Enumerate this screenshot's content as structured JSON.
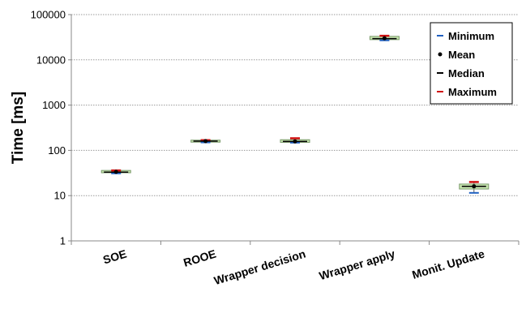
{
  "chart_data": {
    "type": "box",
    "scale": "log",
    "ylabel": "Time [ms]",
    "ylim": [
      1,
      100000
    ],
    "yticks": [
      "1",
      "10",
      "100",
      "1000",
      "10000",
      "100000"
    ],
    "grid": true,
    "legend_position": "top-right",
    "legend": [
      {
        "label": "Minimum",
        "marker": "dash",
        "color": "#2060c0"
      },
      {
        "label": "Mean",
        "marker": "dot",
        "color": "#000000"
      },
      {
        "label": "Median",
        "marker": "dash",
        "color": "#000000"
      },
      {
        "label": "Maximum",
        "marker": "dash",
        "color": "#d01010"
      }
    ],
    "box_color": "#c8e6b0",
    "box_border": "#7a9a6a",
    "categories": [
      "SOE",
      "ROOE",
      "Wrapper decision",
      "Wrapper apply",
      "Monit. Update"
    ],
    "series": [
      {
        "min": 31,
        "q1": 32,
        "q3": 36,
        "mean": 33.5,
        "median": 33,
        "max": 36
      },
      {
        "min": 150,
        "q1": 152,
        "q3": 168,
        "mean": 160,
        "median": 160,
        "max": 168
      },
      {
        "min": 148,
        "q1": 150,
        "q3": 172,
        "mean": 158,
        "median": 158,
        "max": 185
      },
      {
        "min": 27000,
        "q1": 28000,
        "q3": 33000,
        "mean": 30000,
        "median": 29500,
        "max": 34000
      },
      {
        "min": 11.5,
        "q1": 14,
        "q3": 18,
        "mean": 16,
        "median": 16,
        "max": 20
      }
    ]
  }
}
